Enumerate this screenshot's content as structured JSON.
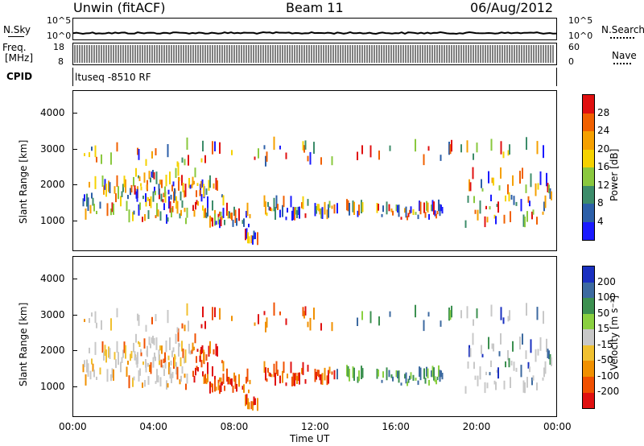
{
  "header": {
    "station": "Unwin (fitACF)",
    "beam": "Beam 11",
    "date": "06/Aug/2012"
  },
  "top_panels": {
    "nsky_label": "N.Sky",
    "nsky_ticks": [
      "10^5",
      "10^0"
    ],
    "nsearch_label": "N.Search",
    "nsearch_ticks": [
      "10^5",
      "10^0"
    ],
    "freq_label_1": "Freq.",
    "freq_label_2": "[MHz]",
    "freq_ticks": [
      "18",
      "8"
    ],
    "nave_label": "Nave",
    "nave_ticks": [
      "60",
      "0"
    ],
    "cpid_label": "CPID",
    "cpid_text": "ltuseq -8510 RF"
  },
  "chart_data": [
    {
      "type": "heatmap",
      "panel": "power",
      "ylabel": "Slant Range [km]",
      "yticks": [
        1000,
        2000,
        3000,
        4000
      ],
      "ylim": [
        180,
        4600
      ],
      "x_ticks": [
        "00:00",
        "04:00",
        "08:00",
        "12:00",
        "16:00",
        "20:00",
        "00:00"
      ],
      "colorbar_label": "Power [dB]",
      "colorbar_ticks": [
        4,
        8,
        12,
        16,
        20,
        24,
        28
      ],
      "colorbar_colors": [
        "#1a1aff",
        "#2c5fa8",
        "#3c8c6a",
        "#8ac83e",
        "#f5d200",
        "#f5a000",
        "#f06000",
        "#e01010"
      ]
    },
    {
      "type": "heatmap",
      "panel": "velocity",
      "ylabel": "Slant Range [km]",
      "yticks": [
        1000,
        2000,
        3000,
        4000
      ],
      "ylim": [
        180,
        4600
      ],
      "x_ticks": [
        "00:00",
        "04:00",
        "08:00",
        "12:00",
        "16:00",
        "20:00",
        "00:00"
      ],
      "xlabel": "Time UT",
      "colorbar_label": "Velocity [m s⁻¹]",
      "colorbar_ticks": [
        200,
        100,
        50,
        15,
        -15,
        -50,
        -100,
        -200
      ],
      "colorbar_colors": [
        "#1a30c0",
        "#3c6aa0",
        "#3c9050",
        "#8ad040",
        "#c8c8c8",
        "#f0c030",
        "#f09000",
        "#f05000",
        "#e01010"
      ]
    }
  ]
}
